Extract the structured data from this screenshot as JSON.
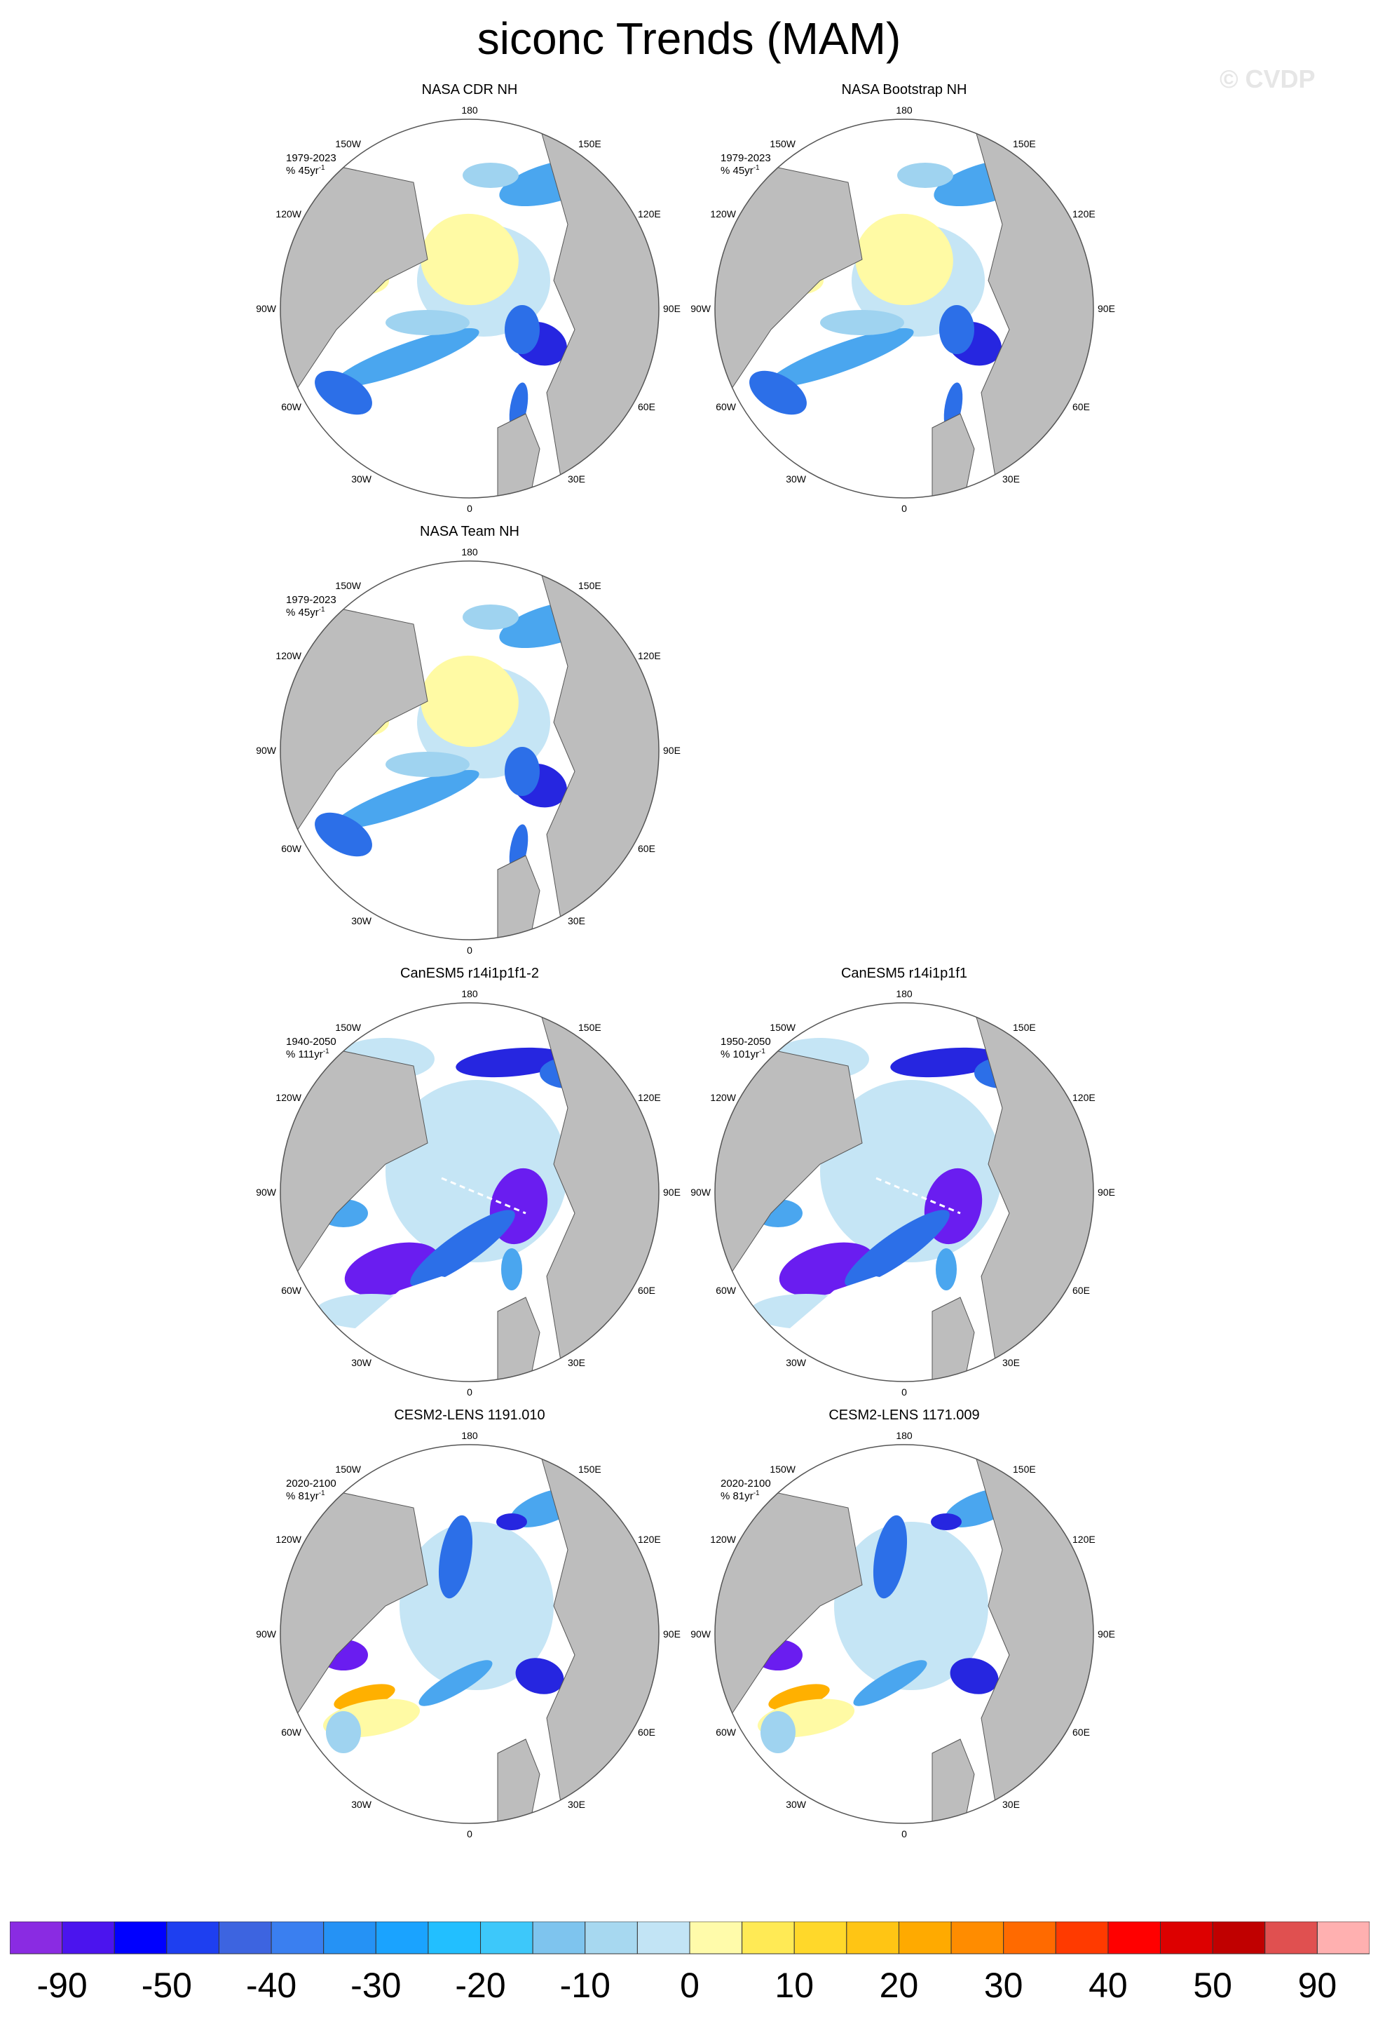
{
  "title": "siconc Trends (MAM)",
  "watermark": "© CVDP",
  "map_labels": {
    "top": "180",
    "bottom": "0",
    "left": "90W",
    "right": "90E",
    "upper_left": "150W",
    "upper_right": "150E",
    "left_upper": "120W",
    "right_upper": "120E",
    "left_lower": "60W",
    "right_lower": "60E",
    "lower_left": "30W",
    "lower_right": "30E"
  },
  "panels": [
    {
      "title": "NASA CDR NH",
      "period": "1979-2023",
      "units": "% 45yr",
      "pattern": "obs"
    },
    {
      "title": "NASA Bootstrap NH",
      "period": "1979-2023",
      "units": "% 45yr",
      "pattern": "obs"
    },
    {
      "title": "NASA Team NH",
      "period": "1979-2023",
      "units": "% 45yr",
      "pattern": "obs"
    },
    {
      "title": "CanESM5 r14i1p1f1-2",
      "period": "1940-2050",
      "units": "% 111yr",
      "pattern": "can"
    },
    {
      "title": "CanESM5 r14i1p1f1",
      "period": "1950-2050",
      "units": "% 101yr",
      "pattern": "can"
    },
    {
      "title": "CESM2-LENS 1191.010",
      "period": "2020-2100",
      "units": "% 81yr",
      "pattern": "cesm"
    },
    {
      "title": "CESM2-LENS 1171.009",
      "period": "2020-2100",
      "units": "% 81yr",
      "pattern": "cesm"
    }
  ],
  "colorbar": {
    "colors": [
      "#8a2be2",
      "#4b14ee",
      "#0000ff",
      "#1e3ff0",
      "#3d64e0",
      "#3a7ff0",
      "#2592f5",
      "#1aa3ff",
      "#22bfff",
      "#3dc8fa",
      "#7ec4ee",
      "#a7d8f0",
      "#c2e4f5",
      "#fffbaa",
      "#ffea55",
      "#ffd82a",
      "#ffc514",
      "#ffaa00",
      "#ff8c00",
      "#ff6a00",
      "#ff3a00",
      "#ff0000",
      "#dd0000",
      "#c00000",
      "#e05050",
      "#ffb0b0"
    ],
    "tick_labels": [
      "-90",
      "-50",
      "-40",
      "-30",
      "-20",
      "-10",
      "0",
      "10",
      "20",
      "30",
      "40",
      "50",
      "90"
    ]
  }
}
